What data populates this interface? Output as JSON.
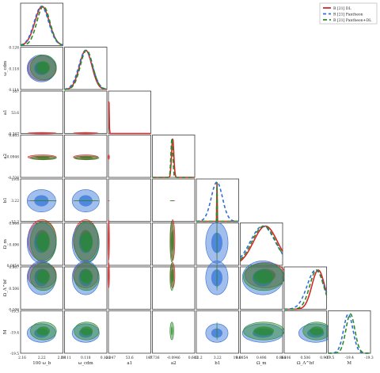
{
  "chart_data": {
    "type": "corner",
    "parameters": [
      {
        "name": "100ωb",
        "label": "100 ω_b",
        "ticks": [
          "2.16",
          "2.22",
          "2.29"
        ],
        "range": [
          2.16,
          2.29
        ]
      },
      {
        "name": "ωcdm",
        "label": "ω_cdm",
        "ticks": [
          "0.111",
          "0.118",
          "0.126"
        ],
        "range": [
          0.111,
          0.126
        ]
      },
      {
        "name": "a1",
        "label": "a1",
        "ticks": [
          "-0.347",
          "53.6",
          "107"
        ],
        "range": [
          -0.347,
          107
        ]
      },
      {
        "name": "a2",
        "label": "a2",
        "ticks": [
          "-0.736",
          "-0.0946",
          "0.603"
        ],
        "range": [
          -0.736,
          0.603
        ]
      },
      {
        "name": "b1",
        "label": "b1",
        "ticks": [
          "-12.2",
          "3.22",
          "19.6"
        ],
        "range": [
          -12.2,
          19.6
        ]
      },
      {
        "name": "Ωm",
        "label": "Ω_m",
        "ticks": [
          "0.0854",
          "0.496",
          "0.866"
        ],
        "range": [
          0.0854,
          0.866
        ]
      },
      {
        "name": "ΩΛbf",
        "label": "Ω_Λ^bf",
        "ticks": [
          "0.106",
          "0.506",
          "0.907"
        ],
        "range": [
          0.106,
          0.907
        ]
      },
      {
        "name": "M",
        "label": "M",
        "ticks": [
          "-19.5",
          "-19.4",
          "-19.3"
        ],
        "range": [
          -19.5,
          -19.3
        ]
      }
    ],
    "legend": {
      "position": "top-right",
      "entries": [
        {
          "label": "R [21] DL",
          "color": "#d62728"
        },
        {
          "label": "R [21] Pantheon",
          "color": "#2e6fd8"
        },
        {
          "label": "R [21] Pantheon+DL",
          "color": "#2a8a2a"
        }
      ]
    },
    "series": [
      {
        "name": "R [21] DL",
        "marginals": [
          [
            2.226,
            0.022
          ],
          [
            0.1185,
            0.0022
          ],
          [
            0.3,
            1.0
          ],
          [
            -0.0946,
            0.035
          ],
          [
            3.3,
            0.05
          ],
          [
            0.55,
            0.22
          ],
          [
            0.75,
            0.12
          ],
          null
        ]
      },
      {
        "name": "R [21] Pantheon",
        "marginals": [
          [
            2.224,
            0.022
          ],
          [
            0.1185,
            0.0024
          ],
          null,
          null,
          [
            3.22,
            4.2
          ],
          [
            0.5,
            0.23
          ],
          [
            0.7,
            0.16
          ],
          [
            -19.405,
            0.022
          ]
        ]
      },
      {
        "name": "R [21] Pantheon+DL",
        "marginals": [
          [
            2.23,
            0.02
          ],
          [
            0.1188,
            0.0022
          ],
          null,
          [
            -0.12,
            0.03
          ],
          [
            3.3,
            0.05
          ],
          [
            0.52,
            0.22
          ],
          [
            0.72,
            0.13
          ],
          [
            -19.395,
            0.021
          ]
        ]
      }
    ],
    "title": "",
    "grid": false
  }
}
